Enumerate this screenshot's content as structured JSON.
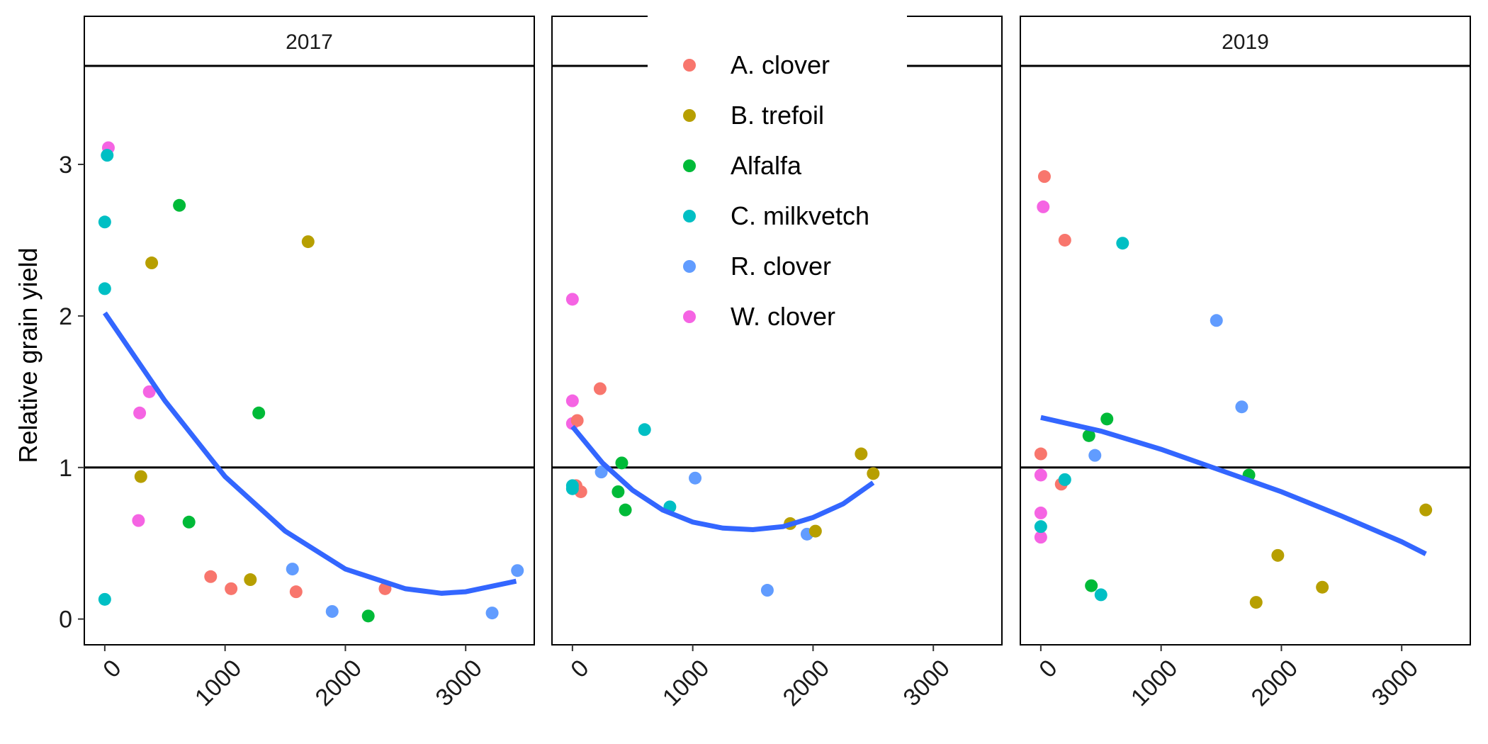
{
  "chart_data": {
    "type": "scatter",
    "layout": "faceted",
    "xlabel": "",
    "ylabel": "Relative grain yield",
    "xlim": [
      -170,
      3570
    ],
    "ylim": [
      -0.17,
      3.65
    ],
    "x_ticks": [
      0,
      1000,
      2000,
      3000
    ],
    "y_ticks": [
      0,
      1,
      2,
      3
    ],
    "reference_line_y": 1,
    "grid": false,
    "legend_position": "top-center (overlapping middle panel)",
    "species": [
      {
        "name": "A. clover",
        "color": "#F8766D"
      },
      {
        "name": "B. trefoil",
        "color": "#B79F00"
      },
      {
        "name": "Alfalfa",
        "color": "#00BA38"
      },
      {
        "name": "C. milkvetch",
        "color": "#00BFC4"
      },
      {
        "name": "R. clover",
        "color": "#619CFF"
      },
      {
        "name": "W. clover",
        "color": "#F564E3"
      }
    ],
    "fit_color": "#3366FF",
    "panels": [
      {
        "title": "2017",
        "points": [
          {
            "species": "W. clover",
            "x": 30,
            "y": 3.11
          },
          {
            "species": "C. milkvetch",
            "x": 20,
            "y": 3.06
          },
          {
            "species": "C. milkvetch",
            "x": 0,
            "y": 2.62
          },
          {
            "species": "C. milkvetch",
            "x": 0,
            "y": 2.18
          },
          {
            "species": "C. milkvetch",
            "x": 0,
            "y": 0.13
          },
          {
            "species": "Alfalfa",
            "x": 620,
            "y": 2.73
          },
          {
            "species": "Alfalfa",
            "x": 1280,
            "y": 1.36
          },
          {
            "species": "Alfalfa",
            "x": 700,
            "y": 0.64
          },
          {
            "species": "Alfalfa",
            "x": 2190,
            "y": 0.02
          },
          {
            "species": "B. trefoil",
            "x": 390,
            "y": 2.35
          },
          {
            "species": "B. trefoil",
            "x": 1690,
            "y": 2.49
          },
          {
            "species": "B. trefoil",
            "x": 300,
            "y": 0.94
          },
          {
            "species": "B. trefoil",
            "x": 1210,
            "y": 0.26
          },
          {
            "species": "W. clover",
            "x": 370,
            "y": 1.5
          },
          {
            "species": "W. clover",
            "x": 290,
            "y": 1.36
          },
          {
            "species": "W. clover",
            "x": 280,
            "y": 0.65
          },
          {
            "species": "A. clover",
            "x": 880,
            "y": 0.28
          },
          {
            "species": "A. clover",
            "x": 1050,
            "y": 0.2
          },
          {
            "species": "A. clover",
            "x": 1590,
            "y": 0.18
          },
          {
            "species": "A. clover",
            "x": 2330,
            "y": 0.2
          },
          {
            "species": "R. clover",
            "x": 1560,
            "y": 0.33
          },
          {
            "species": "R. clover",
            "x": 1890,
            "y": 0.05
          },
          {
            "species": "R. clover",
            "x": 3220,
            "y": 0.04
          },
          {
            "species": "R. clover",
            "x": 3430,
            "y": 0.32
          }
        ],
        "fit": {
          "x": [
            0,
            500,
            1000,
            1500,
            2000,
            2500,
            2800,
            3000,
            3420
          ],
          "y": [
            2.02,
            1.44,
            0.94,
            0.58,
            0.33,
            0.2,
            0.17,
            0.18,
            0.25
          ]
        }
      },
      {
        "title": "",
        "points": [
          {
            "species": "W. clover",
            "x": 0,
            "y": 2.11
          },
          {
            "species": "W. clover",
            "x": 0,
            "y": 1.44
          },
          {
            "species": "W. clover",
            "x": 0,
            "y": 1.29
          },
          {
            "species": "A. clover",
            "x": 230,
            "y": 1.52
          },
          {
            "species": "A. clover",
            "x": 40,
            "y": 1.31
          },
          {
            "species": "A. clover",
            "x": 30,
            "y": 0.88
          },
          {
            "species": "A. clover",
            "x": 70,
            "y": 0.84
          },
          {
            "species": "C. milkvetch",
            "x": 600,
            "y": 1.25
          },
          {
            "species": "C. milkvetch",
            "x": 0,
            "y": 0.88
          },
          {
            "species": "C. milkvetch",
            "x": 0,
            "y": 0.86
          },
          {
            "species": "C. milkvetch",
            "x": 810,
            "y": 0.74
          },
          {
            "species": "Alfalfa",
            "x": 410,
            "y": 1.03
          },
          {
            "species": "Alfalfa",
            "x": 380,
            "y": 0.84
          },
          {
            "species": "Alfalfa",
            "x": 440,
            "y": 0.72
          },
          {
            "species": "R. clover",
            "x": 240,
            "y": 0.97
          },
          {
            "species": "R. clover",
            "x": 1020,
            "y": 0.93
          },
          {
            "species": "R. clover",
            "x": 1620,
            "y": 0.19
          },
          {
            "species": "R. clover",
            "x": 1950,
            "y": 0.56
          },
          {
            "species": "B. trefoil",
            "x": 1810,
            "y": 0.63
          },
          {
            "species": "B. trefoil",
            "x": 2020,
            "y": 0.58
          },
          {
            "species": "B. trefoil",
            "x": 2400,
            "y": 1.09
          },
          {
            "species": "B. trefoil",
            "x": 2500,
            "y": 0.96
          }
        ],
        "fit": {
          "x": [
            0,
            250,
            500,
            750,
            1000,
            1250,
            1500,
            1750,
            2000,
            2250,
            2500
          ],
          "y": [
            1.27,
            1.03,
            0.85,
            0.72,
            0.64,
            0.6,
            0.59,
            0.61,
            0.67,
            0.76,
            0.9
          ]
        }
      },
      {
        "title": "2019",
        "points": [
          {
            "species": "A. clover",
            "x": 30,
            "y": 2.92
          },
          {
            "species": "A. clover",
            "x": 200,
            "y": 2.5
          },
          {
            "species": "A. clover",
            "x": 0,
            "y": 1.09
          },
          {
            "species": "A. clover",
            "x": 170,
            "y": 0.89
          },
          {
            "species": "W. clover",
            "x": 20,
            "y": 2.72
          },
          {
            "species": "W. clover",
            "x": 0,
            "y": 0.95
          },
          {
            "species": "W. clover",
            "x": 0,
            "y": 0.7
          },
          {
            "species": "W. clover",
            "x": 0,
            "y": 0.54
          },
          {
            "species": "C. milkvetch",
            "x": 680,
            "y": 2.48
          },
          {
            "species": "C. milkvetch",
            "x": 200,
            "y": 0.92
          },
          {
            "species": "C. milkvetch",
            "x": 0,
            "y": 0.61
          },
          {
            "species": "C. milkvetch",
            "x": 500,
            "y": 0.16
          },
          {
            "species": "R. clover",
            "x": 1460,
            "y": 1.97
          },
          {
            "species": "R. clover",
            "x": 1670,
            "y": 1.4
          },
          {
            "species": "R. clover",
            "x": 450,
            "y": 1.08
          },
          {
            "species": "Alfalfa",
            "x": 550,
            "y": 1.32
          },
          {
            "species": "Alfalfa",
            "x": 400,
            "y": 1.21
          },
          {
            "species": "Alfalfa",
            "x": 1730,
            "y": 0.95
          },
          {
            "species": "Alfalfa",
            "x": 420,
            "y": 0.22
          },
          {
            "species": "B. trefoil",
            "x": 3200,
            "y": 0.72
          },
          {
            "species": "B. trefoil",
            "x": 1970,
            "y": 0.42
          },
          {
            "species": "B. trefoil",
            "x": 2340,
            "y": 0.21
          },
          {
            "species": "B. trefoil",
            "x": 1790,
            "y": 0.11
          }
        ],
        "fit": {
          "x": [
            0,
            500,
            1000,
            1500,
            2000,
            2500,
            3000,
            3200
          ],
          "y": [
            1.33,
            1.24,
            1.12,
            0.98,
            0.84,
            0.68,
            0.51,
            0.43
          ]
        }
      }
    ]
  }
}
